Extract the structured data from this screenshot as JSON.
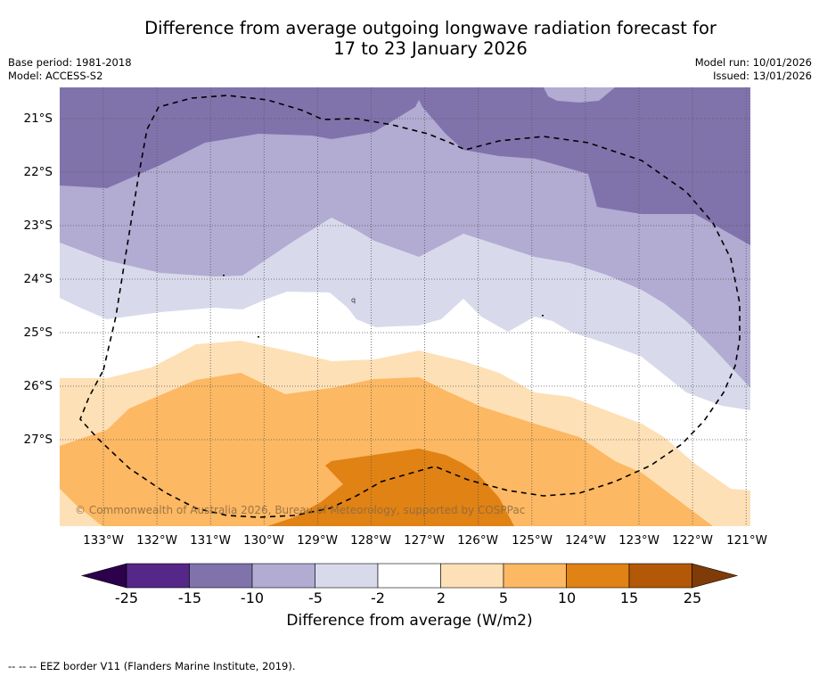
{
  "title": {
    "line1": "Difference from average outgoing longwave radiation forecast for",
    "line2": "17 to 23 January 2026"
  },
  "meta": {
    "base_period": "Base period: 1981-2018",
    "model": "Model: ACCESS-S2",
    "model_run": "Model run: 10/01/2026",
    "issued": "Issued: 13/01/2026"
  },
  "map": {
    "lat_labels": [
      "21°S",
      "22°S",
      "23°S",
      "24°S",
      "25°S",
      "26°S",
      "27°S"
    ],
    "lon_labels": [
      "133°W",
      "132°W",
      "131°W",
      "130°W",
      "129°W",
      "128°W",
      "127°W",
      "126°W",
      "125°W",
      "124°W",
      "123°W",
      "122°W",
      "121°W"
    ],
    "extent": {
      "lon_min": -133.8,
      "lon_max": -120.9,
      "lat_min": -28.6,
      "lat_max": -20.4
    },
    "copyright": "© Commonwealth of Australia 2026, Bureau of Meteorology, supported by COSPPac",
    "gridlines": "dotted"
  },
  "colorbar": {
    "title": "Difference from average (W/m2)",
    "ticks": [
      "-25",
      "-15",
      "-10",
      "-5",
      "-2",
      "2",
      "5",
      "10",
      "15",
      "25"
    ],
    "bins": [
      {
        "range": "< -25",
        "color": "#2d004b"
      },
      {
        "range": "-25 to -15",
        "color": "#542788"
      },
      {
        "range": "-15 to -10",
        "color": "#8073ac"
      },
      {
        "range": "-10 to -5",
        "color": "#b2abd2"
      },
      {
        "range": "-5 to -2",
        "color": "#d8daeb"
      },
      {
        "range": "-2 to 2",
        "color": "#ffffff"
      },
      {
        "range": "2 to 5",
        "color": "#fee0b6"
      },
      {
        "range": "5 to 10",
        "color": "#fdb863"
      },
      {
        "range": "10 to 15",
        "color": "#e08214"
      },
      {
        "range": "15 to 25",
        "color": "#b35806"
      },
      {
        "range": "> 25",
        "color": "#7f3b08"
      }
    ]
  },
  "footnote": "--  --  -- EEZ border V11 (Flanders Marine Institute, 2019)."
}
